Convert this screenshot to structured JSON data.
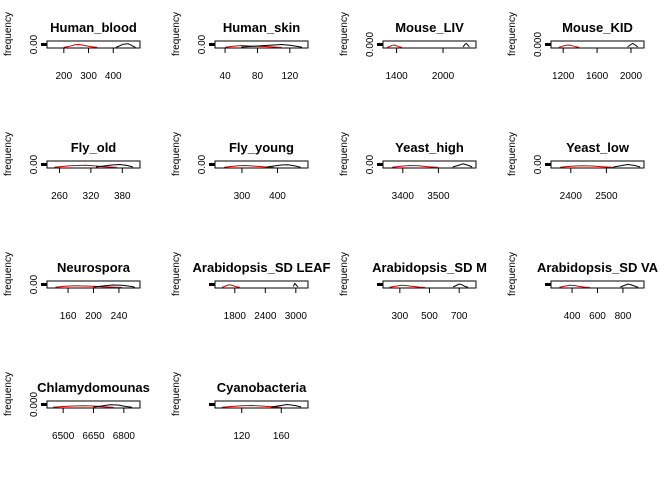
{
  "figure": {
    "background": "#ffffff",
    "colors": {
      "reference": "#000000",
      "observed": "#cc0000"
    }
  },
  "chart_data": [
    {
      "type": "area",
      "title": "Human_blood",
      "ylabel": "frequency",
      "ytick": "0.00",
      "xticks": [
        200,
        300,
        400
      ],
      "xlim": [
        140,
        500
      ],
      "curves": [
        {
          "color": "#cc0000",
          "x": [
            200,
            215,
            230,
            245,
            260,
            275,
            290,
            305,
            320,
            335
          ],
          "y": [
            0.05,
            0.15,
            0.35,
            0.55,
            0.6,
            0.5,
            0.35,
            0.2,
            0.1,
            0.04
          ]
        },
        {
          "color": "#000000",
          "x": [
            410,
            420,
            430,
            440,
            450,
            460,
            470,
            480,
            490
          ],
          "y": [
            0.05,
            0.2,
            0.45,
            0.65,
            0.7,
            0.75,
            0.55,
            0.25,
            0.05
          ]
        }
      ]
    },
    {
      "type": "area",
      "title": "Human_skin",
      "ylabel": "frequency",
      "ytick": "0.00",
      "xticks": [
        40,
        80,
        120
      ],
      "xlim": [
        30,
        140
      ],
      "curves": [
        {
          "color": "#cc0000",
          "x": [
            40,
            50,
            60,
            70,
            80,
            90,
            100,
            110
          ],
          "y": [
            0.05,
            0.25,
            0.4,
            0.3,
            0.25,
            0.2,
            0.1,
            0.03
          ]
        },
        {
          "color": "#000000",
          "x": [
            60,
            70,
            80,
            90,
            100,
            110,
            120,
            130,
            135
          ],
          "y": [
            0.1,
            0.2,
            0.3,
            0.4,
            0.5,
            0.6,
            0.45,
            0.2,
            0.05
          ]
        }
      ]
    },
    {
      "type": "area",
      "title": "Mouse_LIV",
      "ylabel": "frequency",
      "ytick": "0.000",
      "xticks": [
        1400,
        2000
      ],
      "xlim": [
        1250,
        2400
      ],
      "curves": [
        {
          "color": "#cc0000",
          "x": [
            1280,
            1310,
            1340,
            1370,
            1400,
            1430,
            1470
          ],
          "y": [
            0.05,
            0.2,
            0.45,
            0.5,
            0.35,
            0.15,
            0.03
          ]
        },
        {
          "color": "#000000",
          "x": [
            2260,
            2280,
            2300,
            2320,
            2340
          ],
          "y": [
            0.1,
            0.6,
            0.8,
            0.5,
            0.1
          ]
        }
      ]
    },
    {
      "type": "area",
      "title": "Mouse_KID",
      "ylabel": "frequency",
      "ytick": "0.000",
      "xticks": [
        1200,
        1600,
        2000
      ],
      "xlim": [
        1080,
        2130
      ],
      "curves": [
        {
          "color": "#cc0000",
          "x": [
            1150,
            1190,
            1230,
            1270,
            1310,
            1350,
            1390
          ],
          "y": [
            0.05,
            0.25,
            0.45,
            0.5,
            0.35,
            0.15,
            0.03
          ]
        },
        {
          "color": "#000000",
          "x": [
            1960,
            1990,
            2020,
            2050,
            2080
          ],
          "y": [
            0.1,
            0.5,
            0.8,
            0.5,
            0.1
          ]
        }
      ]
    },
    {
      "type": "area",
      "title": "Fly_old",
      "ylabel": "frequency",
      "ytick": "0.00",
      "xticks": [
        260,
        320,
        380
      ],
      "xlim": [
        240,
        410
      ],
      "curves": [
        {
          "color": "#cc0000",
          "x": [
            250,
            265,
            280,
            295,
            310,
            325,
            340,
            355,
            370
          ],
          "y": [
            0.05,
            0.2,
            0.35,
            0.4,
            0.45,
            0.35,
            0.2,
            0.1,
            0.03
          ]
        },
        {
          "color": "#000000",
          "x": [
            330,
            345,
            360,
            375,
            390,
            400
          ],
          "y": [
            0.1,
            0.3,
            0.5,
            0.6,
            0.4,
            0.1
          ]
        }
      ]
    },
    {
      "type": "area",
      "title": "Fly_young",
      "ylabel": "frequency",
      "ytick": "0.00",
      "xticks": [
        300,
        400
      ],
      "xlim": [
        230,
        480
      ],
      "curves": [
        {
          "color": "#cc0000",
          "x": [
            250,
            270,
            290,
            310,
            330,
            350,
            370,
            390
          ],
          "y": [
            0.05,
            0.2,
            0.35,
            0.4,
            0.3,
            0.2,
            0.1,
            0.03
          ]
        },
        {
          "color": "#000000",
          "x": [
            370,
            390,
            410,
            430,
            450,
            465
          ],
          "y": [
            0.1,
            0.3,
            0.5,
            0.55,
            0.3,
            0.05
          ]
        }
      ]
    },
    {
      "type": "area",
      "title": "Yeast_high",
      "ylabel": "frequency",
      "ytick": "0.00",
      "xticks": [
        3400,
        3500
      ],
      "xlim": [
        3350,
        3600
      ],
      "curves": [
        {
          "color": "#cc0000",
          "x": [
            3370,
            3395,
            3420,
            3445,
            3470,
            3500
          ],
          "y": [
            0.05,
            0.25,
            0.4,
            0.35,
            0.15,
            0.03
          ]
        },
        {
          "color": "#000000",
          "x": [
            3540,
            3555,
            3570,
            3585,
            3595
          ],
          "y": [
            0.1,
            0.4,
            0.75,
            0.4,
            0.1
          ]
        }
      ]
    },
    {
      "type": "area",
      "title": "Yeast_low",
      "ylabel": "frequency",
      "ytick": "0.00",
      "xticks": [
        2400,
        2500
      ],
      "xlim": [
        2350,
        2600
      ],
      "curves": [
        {
          "color": "#cc0000",
          "x": [
            2370,
            2400,
            2430,
            2460,
            2490,
            2520
          ],
          "y": [
            0.05,
            0.25,
            0.35,
            0.3,
            0.15,
            0.03
          ]
        },
        {
          "color": "#000000",
          "x": [
            2520,
            2540,
            2560,
            2580,
            2595
          ],
          "y": [
            0.1,
            0.35,
            0.6,
            0.4,
            0.1
          ]
        }
      ]
    },
    {
      "type": "area",
      "title": "Neurospora",
      "ylabel": "frequency",
      "ytick": "0.00",
      "xticks": [
        160,
        200,
        240
      ],
      "xlim": [
        130,
        270
      ],
      "curves": [
        {
          "color": "#cc0000",
          "x": [
            140,
            155,
            170,
            185,
            200,
            215,
            230,
            245
          ],
          "y": [
            0.05,
            0.25,
            0.35,
            0.3,
            0.25,
            0.15,
            0.08,
            0.03
          ]
        },
        {
          "color": "#000000",
          "x": [
            200,
            215,
            230,
            245,
            260,
            265
          ],
          "y": [
            0.1,
            0.3,
            0.5,
            0.45,
            0.2,
            0.05
          ]
        }
      ]
    },
    {
      "type": "area",
      "title": "Arabidopsis_SD LEAF",
      "ylabel": "frequency",
      "ytick": "",
      "xticks": [
        1800,
        2400,
        3000
      ],
      "xlim": [
        1450,
        3200
      ],
      "curves": [
        {
          "color": "#cc0000",
          "x": [
            1550,
            1620,
            1690,
            1760,
            1830,
            1900
          ],
          "y": [
            0.05,
            0.3,
            0.55,
            0.4,
            0.15,
            0.03
          ]
        },
        {
          "color": "#000000",
          "x": [
            2950,
            2980,
            3010,
            3040
          ],
          "y": [
            0.2,
            0.8,
            0.5,
            0.1
          ]
        }
      ]
    },
    {
      "type": "area",
      "title": "Arabidopsis_SD M",
      "ylabel": "frequency",
      "ytick": "",
      "xticks": [
        300,
        500,
        700
      ],
      "xlim": [
        200,
        800
      ],
      "curves": [
        {
          "color": "#cc0000",
          "x": [
            230,
            270,
            310,
            350,
            390,
            430,
            470
          ],
          "y": [
            0.05,
            0.25,
            0.45,
            0.35,
            0.2,
            0.08,
            0.02
          ]
        },
        {
          "color": "#000000",
          "x": [
            660,
            680,
            700,
            720,
            740,
            760
          ],
          "y": [
            0.1,
            0.4,
            0.7,
            0.55,
            0.2,
            0.05
          ]
        }
      ]
    },
    {
      "type": "area",
      "title": "Arabidopsis_SD VA",
      "ylabel": "frequency",
      "ytick": "",
      "xticks": [
        400,
        600,
        800
      ],
      "xlim": [
        250,
        950
      ],
      "curves": [
        {
          "color": "#cc0000",
          "x": [
            300,
            340,
            380,
            420,
            460,
            500,
            540
          ],
          "y": [
            0.05,
            0.25,
            0.45,
            0.4,
            0.2,
            0.08,
            0.02
          ]
        },
        {
          "color": "#000000",
          "x": [
            780,
            810,
            840,
            870,
            900,
            920
          ],
          "y": [
            0.1,
            0.4,
            0.7,
            0.5,
            0.2,
            0.05
          ]
        }
      ]
    },
    {
      "type": "area",
      "title": "Chlamydomounas",
      "ylabel": "frequency",
      "ytick": "0.000",
      "xticks": [
        6500,
        6650,
        6800
      ],
      "xlim": [
        6430,
        6870
      ],
      "curves": [
        {
          "color": "#cc0000",
          "x": [
            6450,
            6500,
            6550,
            6600,
            6650,
            6700,
            6750
          ],
          "y": [
            0.05,
            0.2,
            0.3,
            0.35,
            0.3,
            0.15,
            0.03
          ]
        },
        {
          "color": "#000000",
          "x": [
            6650,
            6690,
            6730,
            6770,
            6810,
            6840
          ],
          "y": [
            0.1,
            0.3,
            0.55,
            0.5,
            0.2,
            0.05
          ]
        }
      ]
    },
    {
      "type": "area",
      "title": "Cyanobacteria",
      "ylabel": "frequency",
      "ytick": "",
      "xticks": [
        120,
        160
      ],
      "xlim": [
        95,
        185
      ],
      "curves": [
        {
          "color": "#cc0000",
          "x": [
            100,
            110,
            120,
            130,
            140,
            150,
            160
          ],
          "y": [
            0.05,
            0.2,
            0.35,
            0.4,
            0.3,
            0.15,
            0.03
          ]
        },
        {
          "color": "#000000",
          "x": [
            150,
            158,
            166,
            174,
            180
          ],
          "y": [
            0.1,
            0.35,
            0.6,
            0.4,
            0.1
          ]
        }
      ]
    }
  ]
}
